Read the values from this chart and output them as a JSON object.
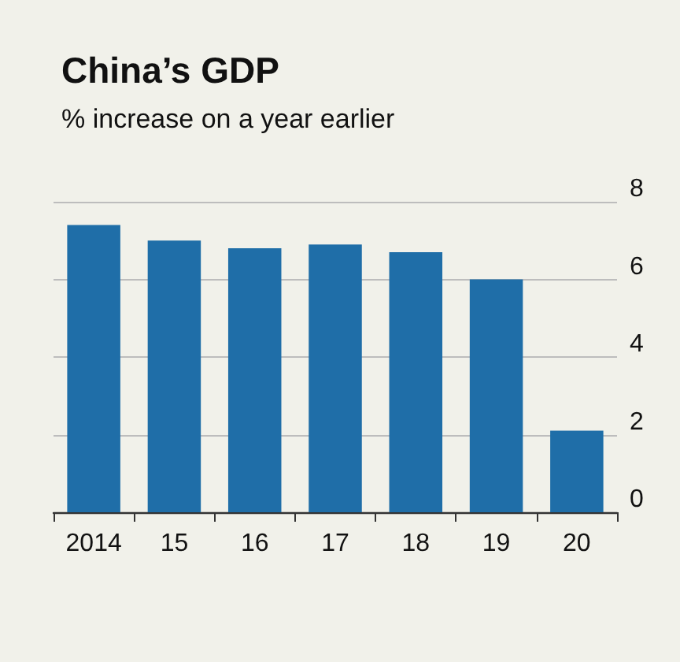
{
  "chart_data": {
    "type": "bar",
    "title": "China’s GDP",
    "subtitle": "% increase on a year earlier",
    "categories": [
      "2014",
      "15",
      "16",
      "17",
      "18",
      "19",
      "20"
    ],
    "values": [
      7.4,
      7.0,
      6.8,
      6.9,
      6.7,
      6.0,
      2.1
    ],
    "color": "#1f6ea8",
    "ylim": [
      0,
      8
    ],
    "yticks": [
      0,
      2,
      4,
      6,
      8
    ],
    "grid": "y"
  }
}
